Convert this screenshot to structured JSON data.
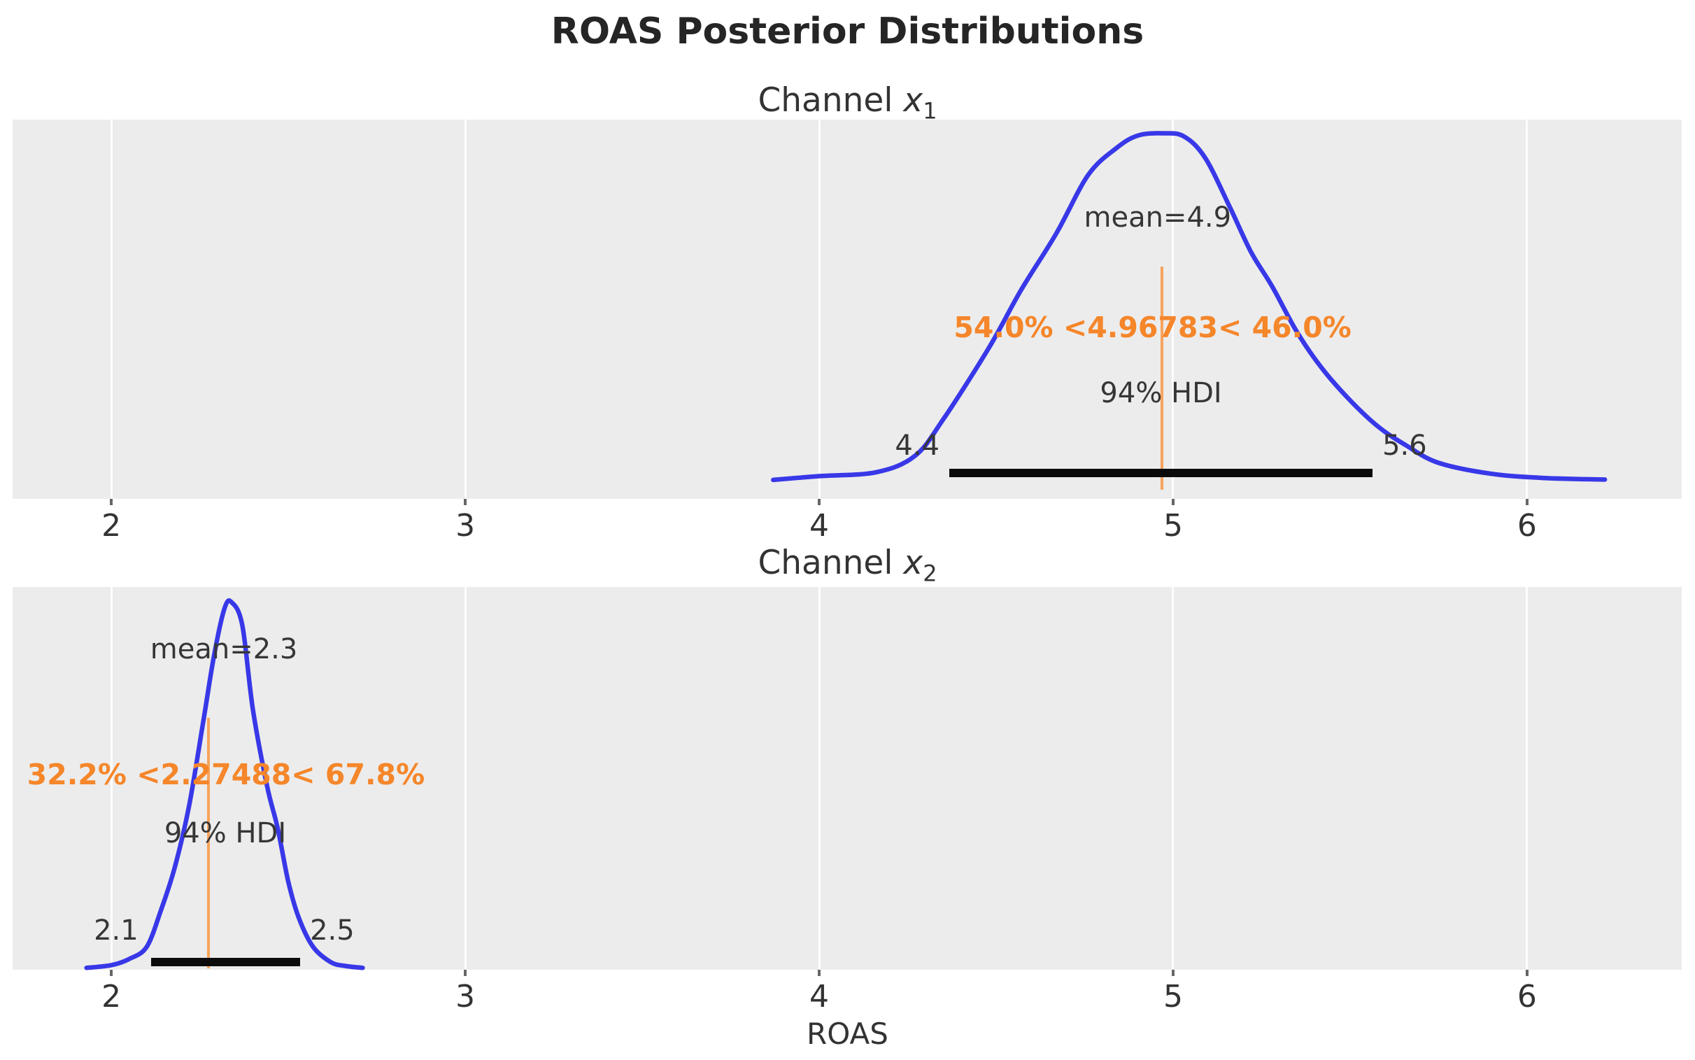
{
  "figure": {
    "title": "ROAS Posterior Distributions",
    "xlabel": "ROAS"
  },
  "chart_data": {
    "type": "kde",
    "title": "ROAS Posterior Distributions",
    "xlabel": "ROAS",
    "x_ticks": [
      2,
      3,
      4,
      5,
      6
    ],
    "xlim": [
      1.721,
      6.437
    ],
    "grid": "vertical-white-gridlines",
    "legend": "none",
    "style": {
      "figure_background": "#ffffff",
      "axes_background": "#ececec",
      "curve_color": "#3838e8",
      "ref_line_color": "#f7a35c",
      "ref_text_color": "#f5862a",
      "hdi_bar_color": "#0b0b0b",
      "text_color": "#363636",
      "tick_label_color": "#333333"
    },
    "distributions": [
      {
        "channel_prefix": "Channel",
        "channel_var": "x",
        "channel_sub": "1",
        "mean": 4.9,
        "mean_label": "mean=4.9",
        "ref_val": 4.96783,
        "ref_label": "54.0% <4.96783< 46.0%",
        "pct_below": 54.0,
        "pct_above": 46.0,
        "hdi_label": "94% HDI",
        "hdi_prob": 0.94,
        "hdi_low": 4.4,
        "hdi_high": 5.6,
        "hdi_low_label": "4.4",
        "hdi_high_label": "5.6",
        "hdi_low_val": 4.367,
        "hdi_high_val": 5.563,
        "kde": [
          [
            3.87,
            0.05
          ],
          [
            4.0,
            0.06
          ],
          [
            4.16,
            0.07
          ],
          [
            4.27,
            0.113
          ],
          [
            4.35,
            0.209
          ],
          [
            4.48,
            0.399
          ],
          [
            4.57,
            0.55
          ],
          [
            4.67,
            0.7
          ],
          [
            4.76,
            0.854
          ],
          [
            4.84,
            0.925
          ],
          [
            4.9,
            0.958
          ],
          [
            4.97,
            0.964
          ],
          [
            5.03,
            0.956
          ],
          [
            5.09,
            0.9
          ],
          [
            5.16,
            0.77
          ],
          [
            5.22,
            0.651
          ],
          [
            5.28,
            0.56
          ],
          [
            5.35,
            0.44
          ],
          [
            5.42,
            0.345
          ],
          [
            5.5,
            0.26
          ],
          [
            5.58,
            0.19
          ],
          [
            5.66,
            0.14
          ],
          [
            5.75,
            0.095
          ],
          [
            5.9,
            0.066
          ],
          [
            6.05,
            0.055
          ],
          [
            6.22,
            0.051
          ]
        ],
        "layout": {
          "mean_fx": 0.686,
          "mean_fy": 0.258,
          "ref_text_fx": 0.683,
          "ref_text_fy": 0.548,
          "hdi_text_fx": 0.688,
          "hdi_text_fy": 0.721,
          "hdi_low_fx": 0.542,
          "hdi_high_fx": 0.834,
          "hdi_labels_fy": 0.86,
          "hdi_bar_fy": 0.932,
          "ref_line_top": 0.387,
          "ref_line_bottom": 0.976
        }
      },
      {
        "channel_prefix": "Channel",
        "channel_var": "x",
        "channel_sub": "2",
        "mean": 2.3,
        "mean_label": "mean=2.3",
        "ref_val": 2.27488,
        "ref_label": "32.2% <2.27488< 67.8%",
        "pct_below": 32.2,
        "pct_above": 67.8,
        "hdi_label": "94% HDI",
        "hdi_prob": 0.94,
        "hdi_low": 2.1,
        "hdi_high": 2.5,
        "hdi_low_label": "2.1",
        "hdi_high_label": "2.5",
        "hdi_low_val": 2.113,
        "hdi_high_val": 2.534,
        "kde": [
          [
            1.93,
            0.005
          ],
          [
            2.0,
            0.012
          ],
          [
            2.05,
            0.028
          ],
          [
            2.1,
            0.06
          ],
          [
            2.14,
            0.155
          ],
          [
            2.18,
            0.27
          ],
          [
            2.22,
            0.43
          ],
          [
            2.26,
            0.65
          ],
          [
            2.29,
            0.82
          ],
          [
            2.32,
            0.945
          ],
          [
            2.34,
            0.96
          ],
          [
            2.37,
            0.9
          ],
          [
            2.4,
            0.68
          ],
          [
            2.44,
            0.48
          ],
          [
            2.47,
            0.37
          ],
          [
            2.5,
            0.23
          ],
          [
            2.53,
            0.135
          ],
          [
            2.57,
            0.06
          ],
          [
            2.62,
            0.02
          ],
          [
            2.66,
            0.01
          ],
          [
            2.71,
            0.005
          ]
        ],
        "layout": {
          "mean_fx": 0.1266,
          "mean_fy": 0.163,
          "ref_text_fx": 0.1278,
          "ref_text_fy": 0.49,
          "hdi_text_fx": 0.1274,
          "hdi_text_fy": 0.643,
          "hdi_low_fx": 0.062,
          "hdi_high_fx": 0.1915,
          "hdi_labels_fy": 0.898,
          "hdi_bar_fy": 0.98,
          "ref_line_top": 0.342,
          "ref_line_bottom": 0.997
        }
      }
    ]
  }
}
